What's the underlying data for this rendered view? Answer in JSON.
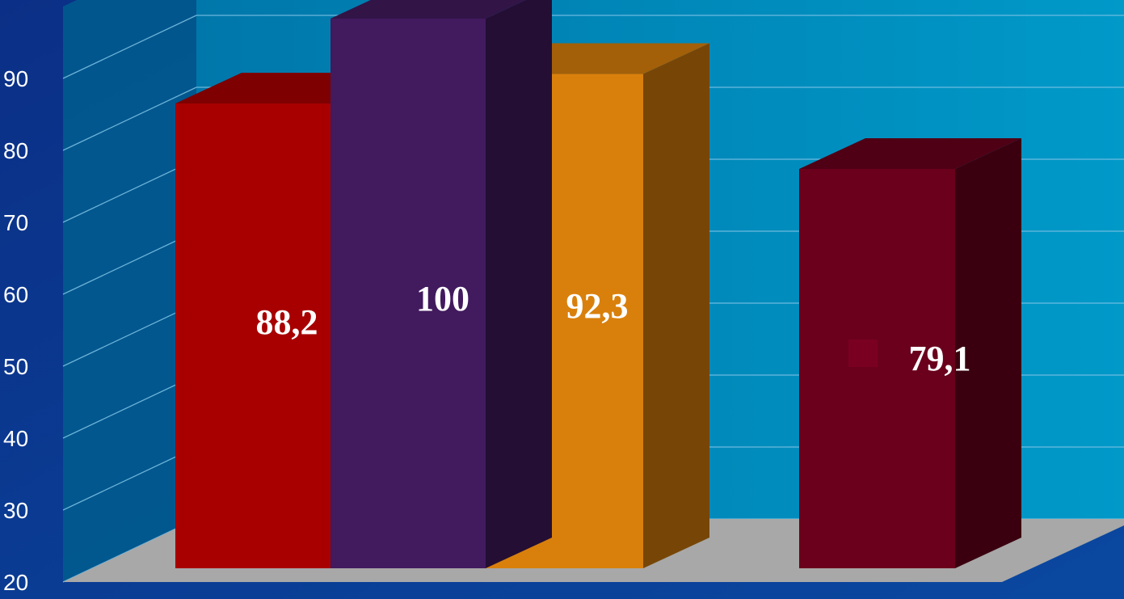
{
  "chart_data": {
    "type": "bar",
    "title": "",
    "xlabel": "",
    "ylabel": "",
    "categories": [
      "",
      "",
      "",
      ""
    ],
    "values": [
      88.2,
      100,
      92.3,
      79.1
    ],
    "value_labels": [
      "88,2",
      "100",
      "92,3",
      "79,1"
    ],
    "ylim": [
      20,
      100
    ],
    "yticks": [
      "20",
      "30",
      "40",
      "50",
      "60",
      "70",
      "80",
      "90"
    ],
    "grid": true,
    "three_d": true,
    "bar_colors": [
      "#a80000",
      "#421a5e",
      "#d9800c",
      "#6a001c"
    ],
    "background_color": "#0a3a8c",
    "wall_color": "#0089b8",
    "floor_color": "#a8a8a8",
    "legend_marker_color": "#7a0022"
  }
}
